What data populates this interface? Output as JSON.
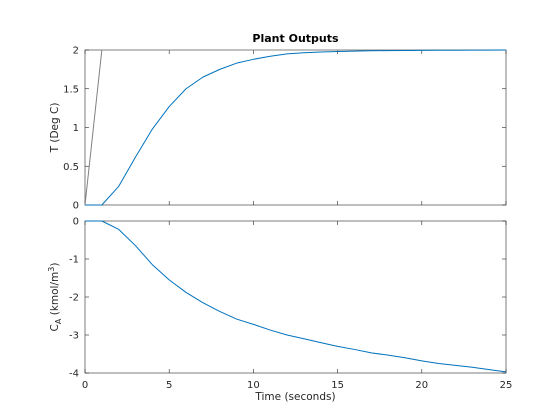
{
  "chart_data": [
    {
      "type": "line",
      "title": "Plant Outputs",
      "xlabel": "",
      "ylabel": "T (Deg C)",
      "xlim": [
        0,
        25
      ],
      "ylim": [
        0,
        2
      ],
      "xticks": [
        "0",
        "5",
        "10",
        "15",
        "20",
        "25"
      ],
      "yticks": [
        "0",
        "0.5",
        "1",
        "1.5",
        "2"
      ],
      "show_xtick_labels": false,
      "series": [
        {
          "color": "#808080",
          "x": [
            0,
            1,
            25
          ],
          "y": [
            0,
            2,
            2
          ]
        },
        {
          "color": "#0072bd",
          "x": [
            0,
            1,
            2,
            3,
            4,
            5,
            6,
            7,
            8,
            9,
            10,
            11,
            12,
            13,
            14,
            15,
            16,
            17,
            18,
            19,
            20,
            21,
            22,
            23,
            24,
            25
          ],
          "y": [
            0,
            0,
            0.24,
            0.62,
            0.98,
            1.27,
            1.5,
            1.65,
            1.75,
            1.83,
            1.88,
            1.92,
            1.95,
            1.965,
            1.975,
            1.98,
            1.985,
            1.99,
            1.992,
            1.994,
            1.995,
            1.996,
            1.997,
            1.998,
            1.999,
            2.0
          ]
        }
      ]
    },
    {
      "type": "line",
      "title": "",
      "xlabel": "Time (seconds)",
      "ylabel": "C",
      "ylabel_subscript": "A",
      "ylabel_rest": " (kmol/m",
      "ylabel_superscript": "3",
      "ylabel_end": ")",
      "xlim": [
        0,
        25
      ],
      "ylim": [
        -4,
        0
      ],
      "xticks": [
        "0",
        "5",
        "10",
        "15",
        "20",
        "25"
      ],
      "yticks": [
        "-4",
        "-3",
        "-2",
        "-1",
        "0"
      ],
      "show_xtick_labels": true,
      "series": [
        {
          "color": "#0072bd",
          "x": [
            0,
            1,
            2,
            3,
            4,
            5,
            6,
            7,
            8,
            9,
            10,
            11,
            12,
            13,
            14,
            15,
            16,
            17,
            18,
            19,
            20,
            21,
            22,
            23,
            24,
            25
          ],
          "y": [
            0,
            0,
            -0.22,
            -0.65,
            -1.15,
            -1.55,
            -1.88,
            -2.15,
            -2.38,
            -2.58,
            -2.72,
            -2.87,
            -3.0,
            -3.1,
            -3.2,
            -3.3,
            -3.38,
            -3.47,
            -3.53,
            -3.6,
            -3.68,
            -3.75,
            -3.8,
            -3.85,
            -3.91,
            -3.97
          ]
        }
      ]
    }
  ]
}
